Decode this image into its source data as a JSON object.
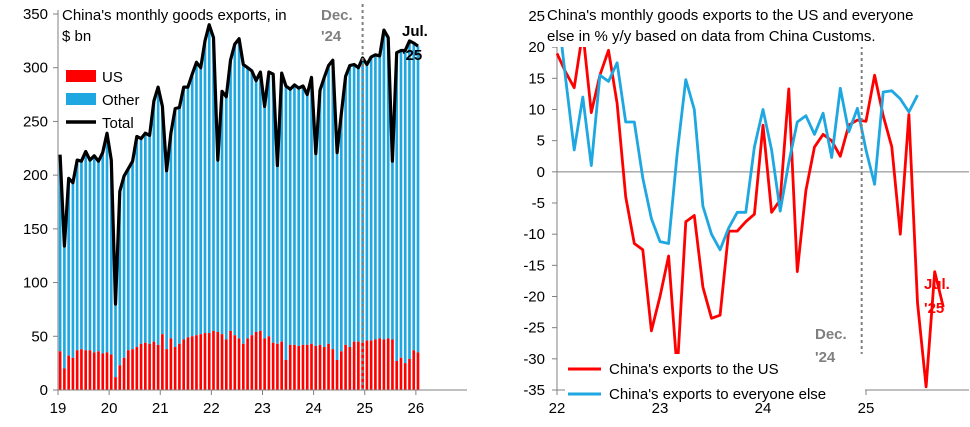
{
  "colors": {
    "us": "#ff0000",
    "other": "#1ea7e0",
    "total": "#000000",
    "marker": "#808080",
    "axis": "#808080"
  },
  "chart_data": [
    {
      "type": "bar",
      "stacked": true,
      "title": "China's monthly goods exports, in $ bn",
      "title_lines": [
        "China's monthly goods exports, in",
        "$ bn"
      ],
      "x_ticks": [
        "19",
        "20",
        "21",
        "22",
        "23",
        "24",
        "25",
        "26"
      ],
      "y_ticks": [
        "0",
        "50",
        "100",
        "150",
        "200",
        "250",
        "300",
        "350"
      ],
      "ylim": [
        0,
        350
      ],
      "xlim": [
        2019.0,
        2027.0
      ],
      "start_year": 2019.0,
      "legend": [
        {
          "key": "us",
          "label": "US",
          "kind": "bar"
        },
        {
          "key": "other",
          "label": "Other",
          "kind": "bar"
        },
        {
          "key": "total",
          "label": "Total",
          "kind": "line"
        }
      ],
      "series": [
        {
          "name": "US",
          "values": [
            36,
            20,
            32,
            30,
            37,
            38,
            37,
            37,
            35,
            36,
            34,
            35,
            33,
            12,
            23,
            30,
            37,
            38,
            40,
            43,
            44,
            43,
            45,
            42,
            52,
            38,
            48,
            40,
            43,
            47,
            49,
            50,
            51,
            52,
            53,
            53,
            55,
            54,
            52,
            47,
            55,
            51,
            48,
            43,
            48,
            51,
            54,
            55,
            48,
            50,
            44,
            43,
            45,
            28,
            42,
            42,
            41,
            42,
            42,
            43,
            41,
            42,
            40,
            43,
            38,
            28,
            36,
            42,
            40,
            45,
            45,
            44,
            46,
            46,
            47,
            48,
            47,
            48,
            47,
            27,
            30,
            25,
            29,
            37,
            35
          ]
        },
        {
          "name": "Total",
          "values": [
            219,
            134,
            197,
            193,
            214,
            213,
            222,
            214,
            218,
            213,
            221,
            239,
            214,
            80,
            185,
            199,
            206,
            213,
            236,
            234,
            239,
            237,
            269,
            282,
            264,
            204,
            239,
            262,
            263,
            282,
            282,
            294,
            305,
            300,
            325,
            340,
            328,
            214,
            278,
            273,
            307,
            322,
            327,
            303,
            300,
            297,
            288,
            296,
            264,
            296,
            294,
            209,
            295,
            283,
            280,
            284,
            281,
            283,
            275,
            291,
            220,
            279,
            291,
            302,
            307,
            221,
            257,
            292,
            302,
            303,
            300,
            309,
            303,
            310,
            312,
            311,
            335,
            328,
            213,
            314,
            316,
            316,
            325,
            323,
            320
          ]
        }
      ],
      "annotations": [
        {
          "lines": [
            "Dec.",
            "'24"
          ],
          "color": "marker"
        },
        {
          "lines": [
            "Jul.",
            "'25"
          ],
          "color": "total"
        }
      ],
      "marker_x": 2024.958
    },
    {
      "type": "line",
      "title": "China's monthly goods exports to the US and everyone else in % y/y based on data from China Customs.",
      "title_lines": [
        "China's monthly goods exports to the US and everyone",
        "else in % y/y based on data from China Customs."
      ],
      "x_ticks": [
        "22",
        "23",
        "24",
        "25"
      ],
      "y_ticks": [
        "25",
        "20",
        "15",
        "10",
        "5",
        "0",
        "-5",
        "-10",
        "-15",
        "-20",
        "-25",
        "-30",
        "-35"
      ],
      "ylim": [
        -35,
        25
      ],
      "xlim": [
        2022.0,
        2026.0
      ],
      "start_year": 2022.0,
      "series": [
        {
          "name": "China's exports to the US",
          "color": "us",
          "values": [
            19,
            16,
            13.5,
            22.5,
            9.5,
            15.5,
            19.5,
            11,
            -4,
            -11.5,
            -12.5,
            -25.5,
            -20,
            -13.5,
            -32,
            -8,
            -7,
            -18.5,
            -23.5,
            -23,
            -9.5,
            -9.5,
            -8,
            -6.8,
            7.5,
            -6.5,
            -4.5,
            13.3,
            -16,
            -3,
            4,
            6,
            5,
            2.5,
            7.5,
            8.3,
            8.1,
            15.5,
            9,
            4,
            -10,
            9.2,
            -21,
            -34.5,
            -16,
            -21.7
          ]
        },
        {
          "name": "China's exports to everyone else",
          "color": "other",
          "values": [
            27,
            15,
            3.5,
            12,
            1,
            15.5,
            14.5,
            17.5,
            8,
            8,
            -1,
            -7.5,
            -11.2,
            -11.5,
            3,
            14.8,
            10,
            -5.5,
            -10,
            -12.5,
            -9,
            -6.5,
            -6.5,
            4,
            10,
            3.5,
            -6.3,
            1.5,
            8,
            9,
            6,
            9.4,
            2.3,
            13.4,
            6.4,
            10.2,
            3.5,
            -2,
            12.8,
            13,
            11.7,
            9.6,
            12.3
          ]
        }
      ],
      "legend": [
        {
          "key": "us",
          "label": "China's exports to the US"
        },
        {
          "key": "other",
          "label": "China's exports to everyone else"
        }
      ],
      "annotations": [
        {
          "lines": [
            "Dec.",
            "'24"
          ],
          "color": "marker"
        },
        {
          "lines": [
            "Jul.",
            "'25"
          ],
          "color": "us"
        }
      ],
      "marker_x": 2024.958
    }
  ]
}
